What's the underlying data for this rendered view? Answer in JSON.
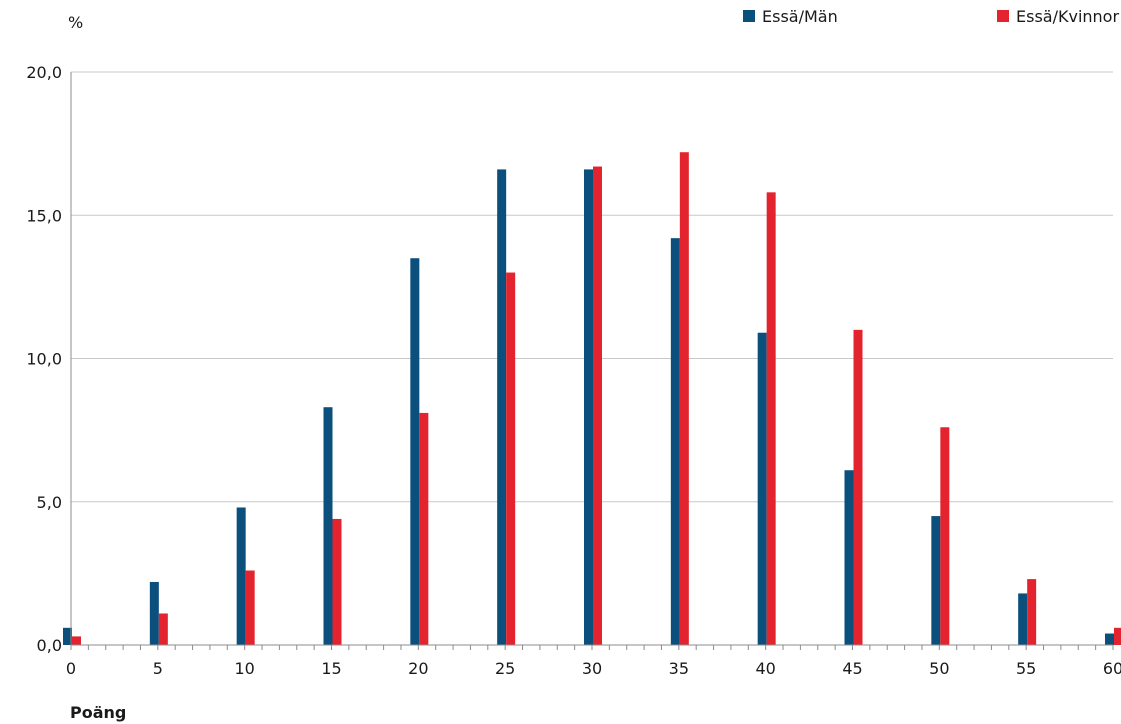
{
  "chart_data": {
    "type": "bar",
    "ylabel": "%",
    "xlabel": "Poäng",
    "ylim": [
      0,
      20
    ],
    "y_ticks": [
      {
        "value": 0,
        "label": "0,0"
      },
      {
        "value": 5,
        "label": "5,0"
      },
      {
        "value": 10,
        "label": "10,0"
      },
      {
        "value": 15,
        "label": "15,0"
      },
      {
        "value": 20,
        "label": "20,0"
      }
    ],
    "x_range": [
      0,
      60
    ],
    "x_tick_labels": [
      "0",
      "5",
      "10",
      "15",
      "20",
      "25",
      "30",
      "35",
      "40",
      "45",
      "50",
      "55",
      "60"
    ],
    "categories": [
      0,
      5,
      10,
      15,
      20,
      25,
      30,
      35,
      40,
      45,
      50,
      55,
      60
    ],
    "grid": "horizontal",
    "legend_position": "top-right",
    "series": [
      {
        "name": "Essä/Män",
        "color": "#0b4f7c",
        "values": [
          0.6,
          2.2,
          4.8,
          8.3,
          13.5,
          16.6,
          16.6,
          14.2,
          10.9,
          6.1,
          4.5,
          1.8,
          0.4
        ]
      },
      {
        "name": "Essä/Kvinnor",
        "color": "#e3242f",
        "values": [
          0.3,
          1.1,
          2.6,
          4.4,
          8.1,
          13.0,
          16.7,
          17.2,
          15.8,
          11.0,
          7.6,
          2.3,
          0.6
        ]
      }
    ]
  }
}
